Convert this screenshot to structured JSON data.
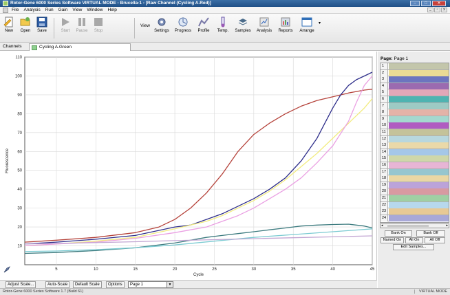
{
  "window": {
    "title": "Rotor-Gene 6000 Series Software VIRTUAL MODE - Brucella-1 - [Raw Channel (Cycling A.Red)]"
  },
  "menu": [
    "File",
    "Analysis",
    "Run",
    "Gain",
    "View",
    "Window",
    "Help"
  ],
  "toolbar": {
    "new": "New",
    "open": "Open",
    "save": "Save",
    "start": "Start",
    "pause": "Pause",
    "stop": "Stop",
    "view_label": "View",
    "settings": "Settings",
    "progress": "Progress",
    "profile": "Profile",
    "temp": "Temp.",
    "samples": "Samples",
    "analysis": "Analysis",
    "reports": "Reports",
    "arrange": "Arrange"
  },
  "channels": {
    "label": "Channels",
    "tab": "Cycling A.Green"
  },
  "bottom_bar": {
    "adjust_scale": "Adjust Scale...",
    "auto_scale": "Auto-Scale",
    "default_scale": "Default Scale",
    "options": "Options",
    "page_select": "Page 1"
  },
  "status": {
    "left": "Rotor-Gene 6000 Series Software 1.7 (Build 61)",
    "right": "VIRTUAL MODE"
  },
  "sample_panel": {
    "page_label": "Page:",
    "page_value": "Page 1",
    "rows": [
      {
        "num": "1",
        "color": "#c3c6ab"
      },
      {
        "num": "2",
        "color": "#eadb95"
      },
      {
        "num": "3",
        "color": "#6c75bf"
      },
      {
        "num": "4",
        "color": "#9b6bb0"
      },
      {
        "num": "5",
        "color": "#e2a7b8"
      },
      {
        "num": "6",
        "color": "#4fb3b1"
      },
      {
        "num": "7",
        "color": "#9ecac4"
      },
      {
        "num": "8",
        "color": "#e4b3a8"
      },
      {
        "num": "9",
        "color": "#a4d8cf"
      },
      {
        "num": "10",
        "color": "#b05bc1"
      },
      {
        "num": "11",
        "color": "#c4c29a"
      },
      {
        "num": "12",
        "color": "#b8d7de"
      },
      {
        "num": "13",
        "color": "#ead9a9"
      },
      {
        "num": "14",
        "color": "#a5c7e8"
      },
      {
        "num": "15",
        "color": "#cfd7a9"
      },
      {
        "num": "16",
        "color": "#e7b5d5"
      },
      {
        "num": "17",
        "color": "#96c6cf"
      },
      {
        "num": "18",
        "color": "#ead7a4"
      },
      {
        "num": "19",
        "color": "#bba3d9"
      },
      {
        "num": "20",
        "color": "#d89aa1"
      },
      {
        "num": "21",
        "color": "#9fd0a3"
      },
      {
        "num": "22",
        "color": "#b7d8ec"
      },
      {
        "num": "23",
        "color": "#e7c995"
      },
      {
        "num": "24",
        "color": "#a8a8d8"
      }
    ],
    "bank_on": "Bank On",
    "bank_off": "Bank Off",
    "named_on": "Named On",
    "all_on": "All On",
    "all_off": "All Off",
    "edit_samples": "Edit Samples..."
  },
  "chart_data": {
    "type": "line",
    "xlabel": "Cycle",
    "ylabel": "Fluorescence",
    "xlim": [
      1,
      45
    ],
    "ylim": [
      0,
      110
    ],
    "xticks": [
      5,
      10,
      15,
      20,
      25,
      30,
      35,
      40,
      45
    ],
    "yticks": [
      10,
      20,
      30,
      40,
      50,
      60,
      70,
      80,
      90,
      100,
      110
    ],
    "grid": true,
    "series": [
      {
        "color": "#b5423a",
        "x": [
          1,
          5,
          10,
          15,
          18,
          20,
          22,
          24,
          26,
          28,
          30,
          32,
          34,
          36,
          38,
          40,
          42,
          44,
          45
        ],
        "y": [
          12,
          13,
          14.5,
          17,
          20,
          24,
          30,
          38,
          48,
          60,
          69,
          75,
          80,
          84,
          87,
          89,
          91,
          92.5,
          93
        ]
      },
      {
        "color": "#2d2d8a",
        "x": [
          1,
          5,
          10,
          15,
          20,
          22,
          24,
          26,
          28,
          30,
          32,
          34,
          36,
          38,
          40,
          41,
          42,
          43,
          44,
          45
        ],
        "y": [
          11,
          12,
          13.5,
          15.5,
          20,
          21,
          24,
          27,
          31,
          35,
          40,
          46,
          55,
          67,
          83,
          90,
          95,
          98,
          100,
          102
        ]
      },
      {
        "color": "#f2ec80",
        "x": [
          1,
          5,
          10,
          15,
          20,
          22,
          24,
          26,
          28,
          30,
          32,
          34,
          36,
          38,
          40,
          42,
          44,
          45
        ],
        "y": [
          10,
          11,
          12.5,
          14.5,
          19,
          21,
          23,
          26,
          30,
          34,
          39,
          45,
          52,
          59,
          67,
          75,
          83,
          88
        ]
      },
      {
        "color": "#eaa0e3",
        "x": [
          1,
          5,
          10,
          15,
          20,
          22,
          24,
          26,
          28,
          30,
          32,
          34,
          36,
          38,
          40,
          42,
          43,
          44,
          45
        ],
        "y": [
          10,
          11,
          12,
          14,
          17,
          18.5,
          20,
          23,
          26,
          30,
          35,
          40,
          46,
          54,
          63,
          76,
          86,
          95,
          100
        ]
      },
      {
        "color": "#3b7a7e",
        "x": [
          1,
          5,
          10,
          15,
          20,
          22,
          24,
          26,
          28,
          30,
          32,
          34,
          36,
          38,
          40,
          42,
          44,
          45
        ],
        "y": [
          6,
          6.5,
          7.5,
          9,
          11.5,
          13,
          14.5,
          15.5,
          16.5,
          17.5,
          18.5,
          19.5,
          20.5,
          21,
          21.3,
          21.5,
          20.5,
          19.5
        ]
      },
      {
        "color": "#7ccbd2",
        "x": [
          1,
          5,
          10,
          15,
          20,
          25,
          30,
          35,
          40,
          45
        ],
        "y": [
          7,
          7.3,
          8,
          9,
          10.5,
          12.5,
          14.5,
          16,
          17.5,
          19
        ]
      },
      {
        "color": "#c2a6d3",
        "x": [
          1,
          5,
          10,
          15,
          20,
          25,
          30,
          35,
          40,
          45
        ],
        "y": [
          11,
          11.3,
          11.7,
          12.2,
          12.8,
          13.3,
          13.8,
          14.3,
          14.8,
          15.3
        ]
      }
    ]
  }
}
